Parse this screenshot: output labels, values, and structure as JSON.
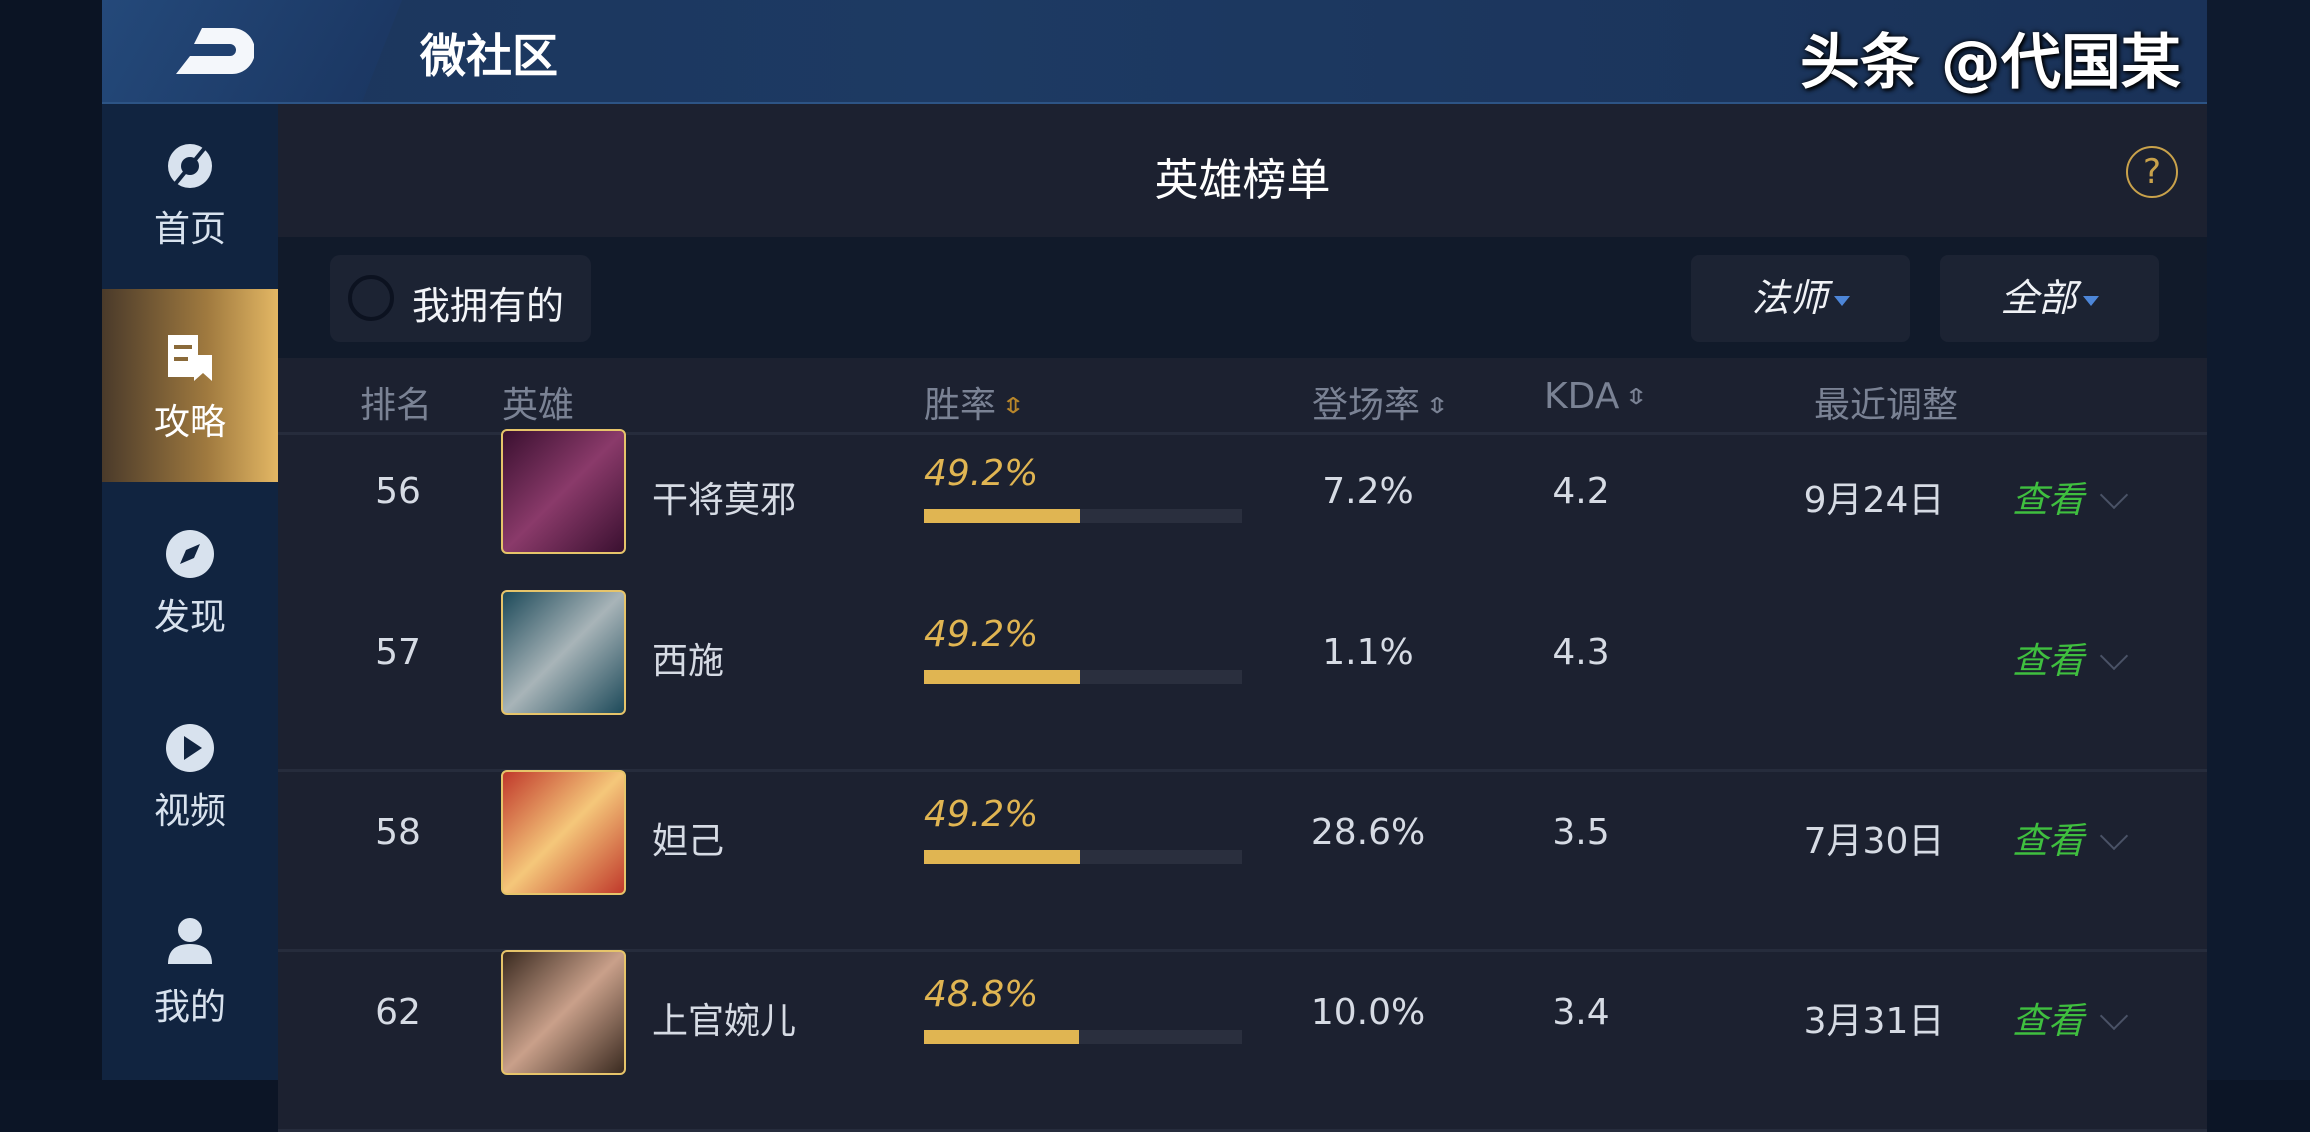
{
  "app": {
    "title": "微社区",
    "logo_icon": "back-d-logo-icon"
  },
  "sidebar": {
    "items": [
      {
        "label": "首页",
        "icon": "home-orb-icon",
        "active": false
      },
      {
        "label": "攻略",
        "icon": "guide-book-icon",
        "active": true
      },
      {
        "label": "发现",
        "icon": "compass-icon",
        "active": false
      },
      {
        "label": "视频",
        "icon": "play-icon",
        "active": false
      },
      {
        "label": "我的",
        "icon": "user-icon",
        "active": false
      }
    ]
  },
  "page": {
    "title": "英雄榜单",
    "help": "?"
  },
  "filters": {
    "owned_label": "我拥有的",
    "role": "法师",
    "scope": "全部"
  },
  "columns": {
    "rank": "排名",
    "hero": "英雄",
    "winrate": "胜率",
    "pickrate": "登场率",
    "kda": "KDA",
    "adjust": "最近调整"
  },
  "rows": [
    {
      "rank": "56",
      "name": "干将莫邪",
      "winrate": "49.2%",
      "winrate_value": 49.2,
      "pickrate": "7.2%",
      "kda": "4.2",
      "adjust": "9月24日",
      "view": "查看",
      "avatar_colors": [
        "#3a1030",
        "#8a3a6a"
      ]
    },
    {
      "rank": "57",
      "name": "西施",
      "winrate": "49.2%",
      "winrate_value": 49.2,
      "pickrate": "1.1%",
      "kda": "4.3",
      "adjust": "",
      "view": "查看",
      "avatar_colors": [
        "#1d4a5a",
        "#a8b4b8"
      ]
    },
    {
      "rank": "58",
      "name": "妲己",
      "winrate": "49.2%",
      "winrate_value": 49.2,
      "pickrate": "28.6%",
      "kda": "3.5",
      "adjust": "7月30日",
      "view": "查看",
      "avatar_colors": [
        "#c0392b",
        "#f5c77a"
      ]
    },
    {
      "rank": "62",
      "name": "上官婉儿",
      "winrate": "48.8%",
      "winrate_value": 48.8,
      "pickrate": "10.0%",
      "kda": "3.4",
      "adjust": "3月31日",
      "view": "查看",
      "avatar_colors": [
        "#3a2a20",
        "#c9a08a"
      ]
    }
  ],
  "watermark": "头条 @代国某",
  "colors": {
    "accent_gold": "#e0b552",
    "view_green": "#3fbf3f",
    "dropdown_caret": "#4d86d8"
  }
}
